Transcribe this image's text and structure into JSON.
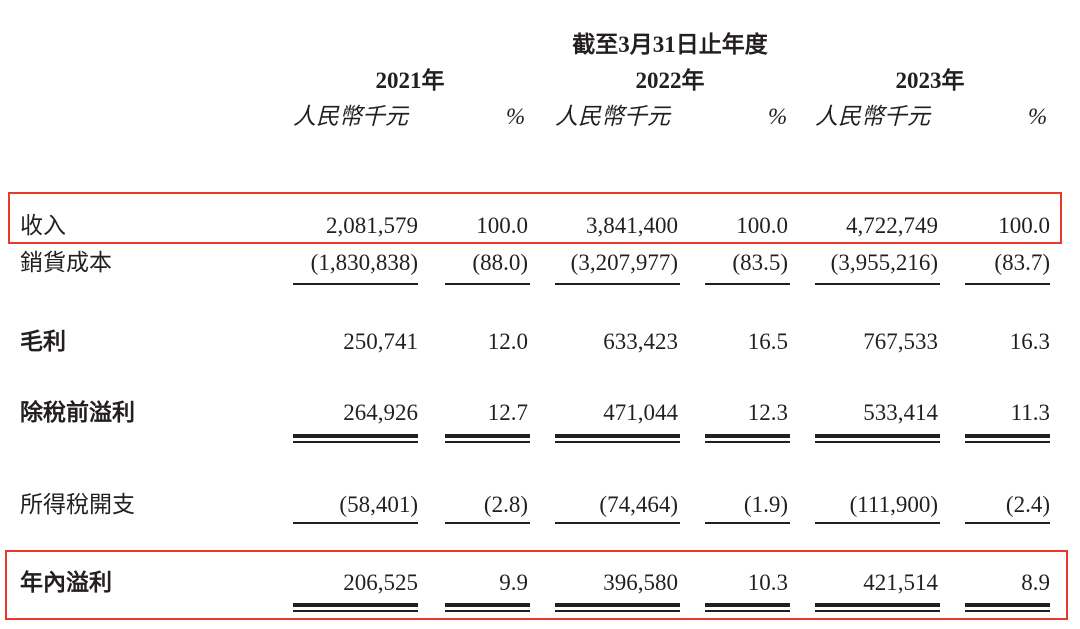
{
  "header": {
    "period_title": "截至3月31日止年度",
    "years": [
      "2021年",
      "2022年",
      "2023年"
    ],
    "unit_amount": "人民幣千元",
    "unit_percent": "%"
  },
  "rows": [
    {
      "label": "收入",
      "bold": false,
      "values": [
        "2,081,579",
        "100.0",
        "3,841,400",
        "100.0",
        "4,722,749",
        "100.0"
      ],
      "highlighted": true
    },
    {
      "label": "銷貨成本",
      "bold": false,
      "values": [
        "(1,830,838)",
        "(88.0)",
        "(3,207,977)",
        "(83.5)",
        "(3,955,216)",
        "(83.7)"
      ]
    },
    {
      "label": "毛利",
      "bold": true,
      "values": [
        "250,741",
        "12.0",
        "633,423",
        "16.5",
        "767,533",
        "16.3"
      ]
    },
    {
      "label": "除稅前溢利",
      "bold": true,
      "values": [
        "264,926",
        "12.7",
        "471,044",
        "12.3",
        "533,414",
        "11.3"
      ]
    },
    {
      "label": "所得稅開支",
      "bold": false,
      "values": [
        "(58,401)",
        "(2.8)",
        "(74,464)",
        "(1.9)",
        "(111,900)",
        "(2.4)"
      ]
    },
    {
      "label": "年內溢利",
      "bold": true,
      "values": [
        "206,525",
        "9.9",
        "396,580",
        "10.3",
        "421,514",
        "8.9"
      ],
      "highlighted": true
    }
  ],
  "colors": {
    "highlight_box": "#e8392a",
    "text": "#231f20"
  }
}
